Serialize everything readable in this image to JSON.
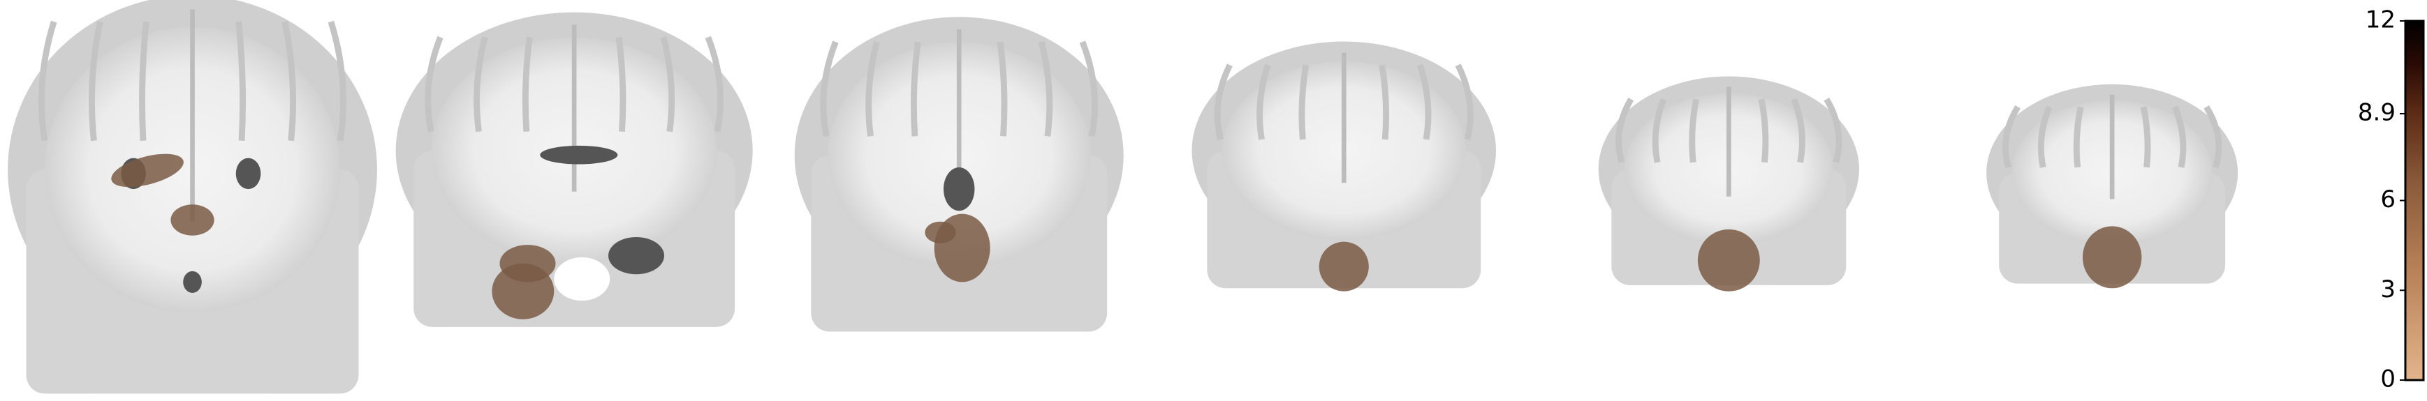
{
  "colorbar": {
    "lim": [
      0,
      12
    ],
    "ticks": [
      0,
      3,
      6,
      8.9,
      12
    ]
  }
}
